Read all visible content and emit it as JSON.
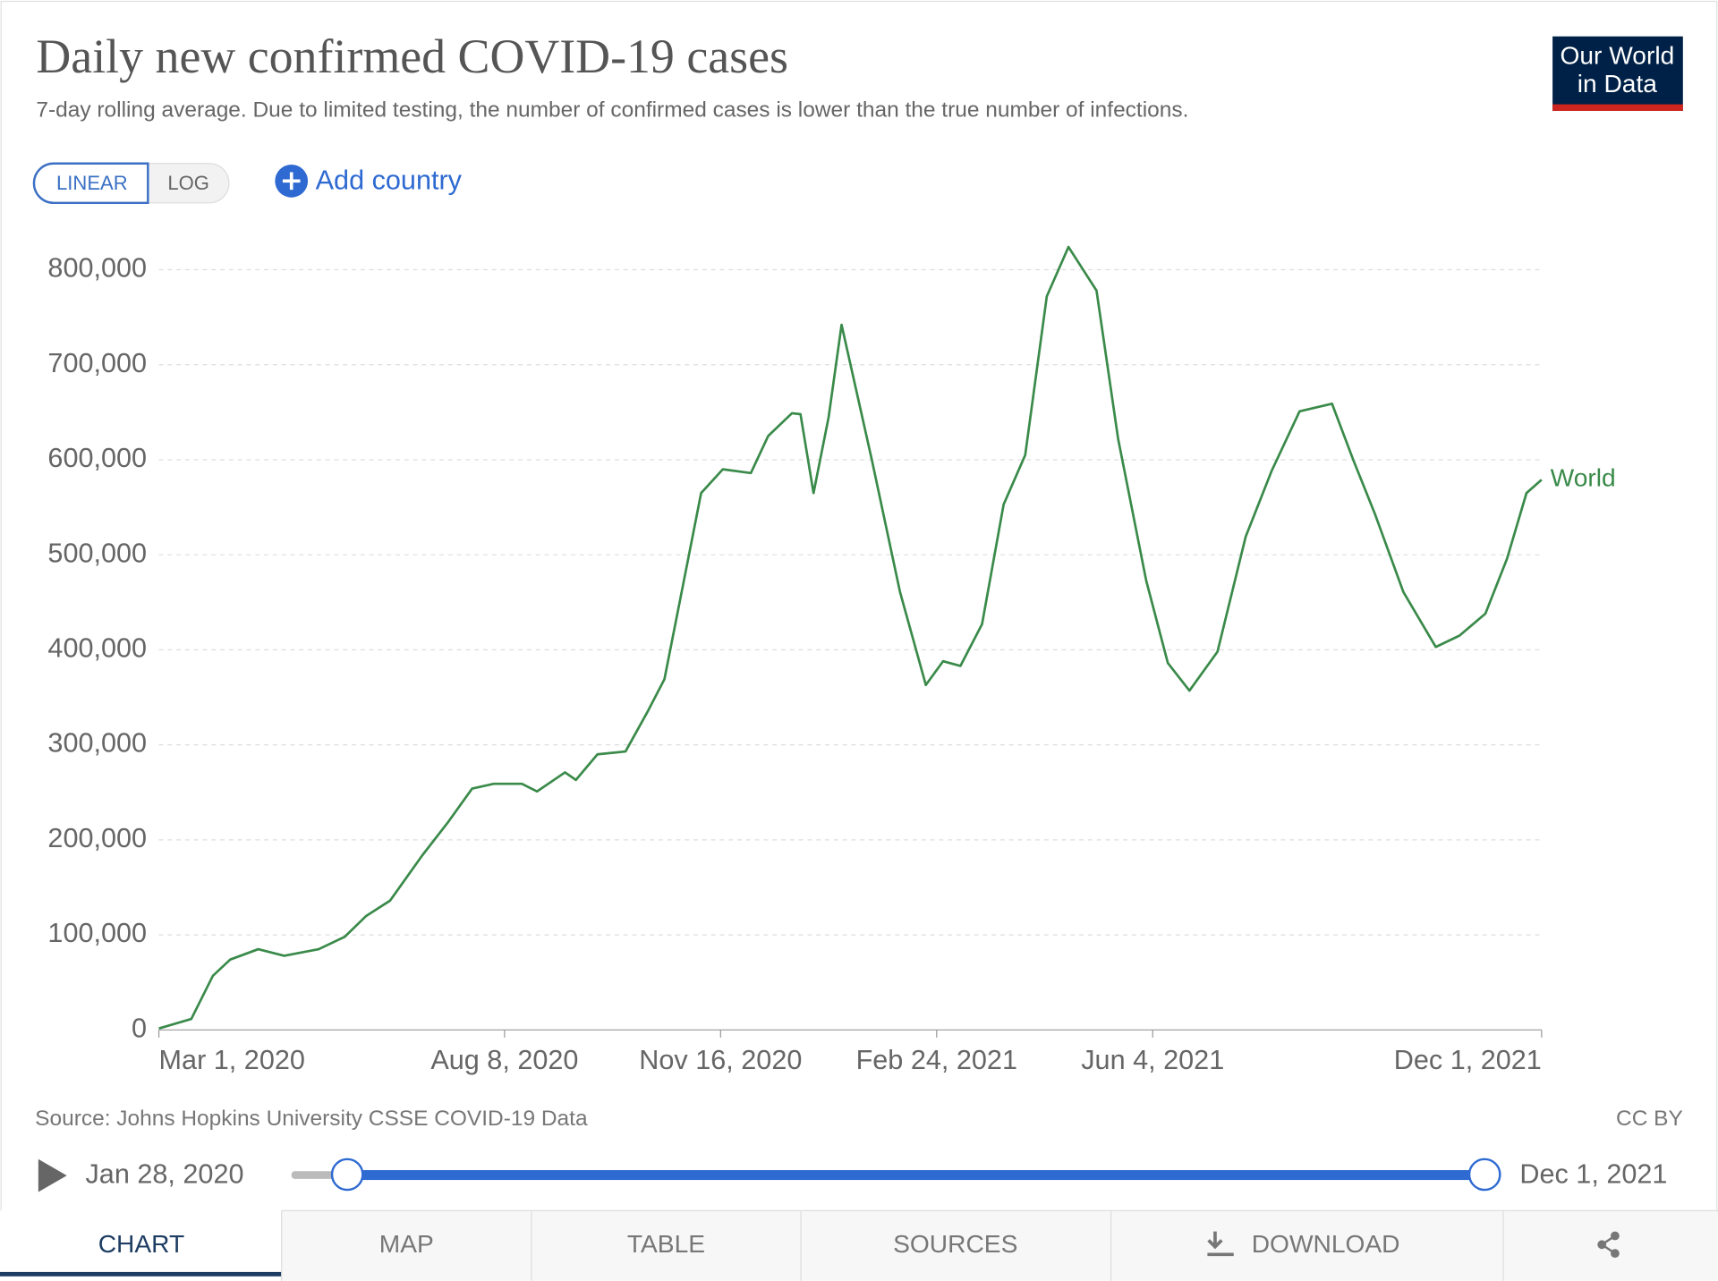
{
  "chart_data": {
    "type": "line",
    "title": "Daily new confirmed COVID-19 cases",
    "subtitle": "7-day rolling average. Due to limited testing, the number of confirmed cases is lower than the true number of infections.",
    "x": [
      "2020-03-01",
      "2020-03-16",
      "2020-03-26",
      "2020-04-03",
      "2020-04-16",
      "2020-04-28",
      "2020-05-14",
      "2020-05-26",
      "2020-06-05",
      "2020-06-16",
      "2020-07-01",
      "2020-07-13",
      "2020-07-24",
      "2020-08-03",
      "2020-08-16",
      "2020-08-23",
      "2020-09-05",
      "2020-09-10",
      "2020-09-20",
      "2020-10-03",
      "2020-10-13",
      "2020-10-21",
      "2020-10-31",
      "2020-11-07",
      "2020-11-17",
      "2020-11-30",
      "2020-12-08",
      "2020-12-19",
      "2020-12-23",
      "2020-12-29",
      "2021-01-05",
      "2021-01-11",
      "2021-01-25",
      "2021-02-07",
      "2021-02-19",
      "2021-02-27",
      "2021-03-07",
      "2021-03-17",
      "2021-03-27",
      "2021-04-06",
      "2021-04-16",
      "2021-04-26",
      "2021-05-09",
      "2021-05-19",
      "2021-06-01",
      "2021-06-11",
      "2021-06-21",
      "2021-07-04",
      "2021-07-17",
      "2021-07-29",
      "2021-08-11",
      "2021-08-26",
      "2021-09-05",
      "2021-09-15",
      "2021-09-28",
      "2021-10-13",
      "2021-10-24",
      "2021-11-05",
      "2021-11-15",
      "2021-11-24",
      "2021-12-01"
    ],
    "series": [
      {
        "name": "World",
        "color": "#3a8a4a",
        "values": [
          1500,
          11500,
          57000,
          74000,
          85000,
          78000,
          85000,
          98000,
          120000,
          136000,
          184000,
          219000,
          254000,
          259000,
          259000,
          251000,
          271000,
          263000,
          290000,
          293000,
          334000,
          369000,
          484000,
          565000,
          590000,
          586000,
          625000,
          649000,
          648000,
          565000,
          645000,
          742000,
          600000,
          461000,
          363000,
          388000,
          383000,
          427000,
          553000,
          605000,
          772000,
          824000,
          778000,
          622000,
          473000,
          386000,
          357000,
          398000,
          519000,
          588000,
          651000,
          659000,
          599000,
          542000,
          461000,
          403000,
          415000,
          438000,
          496000,
          565000,
          579000
        ]
      }
    ],
    "xlim": [
      "2020-03-01",
      "2021-12-01"
    ],
    "xticks": [
      {
        "value": "2020-03-01",
        "label": "Mar 1, 2020"
      },
      {
        "value": "2020-08-08",
        "label": "Aug 8, 2020"
      },
      {
        "value": "2020-11-16",
        "label": "Nov 16, 2020"
      },
      {
        "value": "2021-02-24",
        "label": "Feb 24, 2021"
      },
      {
        "value": "2021-06-04",
        "label": "Jun 4, 2021"
      },
      {
        "value": "2021-12-01",
        "label": "Dec 1, 2021"
      }
    ],
    "ylim": [
      0,
      800000
    ],
    "yticks": [
      0,
      {
        "value": 100000,
        "label": "100,000"
      },
      {
        "value": 200000,
        "label": "200,000"
      },
      {
        "value": 300000,
        "label": "300,000"
      },
      {
        "value": 400000,
        "label": "400,000"
      },
      {
        "value": 500000,
        "label": "500,000"
      },
      {
        "value": 600000,
        "label": "600,000"
      },
      {
        "value": 700000,
        "label": "700,000"
      },
      {
        "value": 800000,
        "label": "800,000"
      }
    ],
    "grid": true
  },
  "logo": [
    "Our World",
    "in Data"
  ],
  "controls": {
    "linear": "LINEAR",
    "log": "LOG",
    "add": "Add country"
  },
  "footer": {
    "source": "Source: Johns Hopkins University CSSE COVID-19 Data",
    "license": "CC BY"
  },
  "timeline": {
    "start": "Jan 28, 2020",
    "end": "Dec 1, 2021"
  },
  "tabs": [
    "CHART",
    "MAP",
    "TABLE",
    "SOURCES",
    "DOWNLOAD"
  ]
}
